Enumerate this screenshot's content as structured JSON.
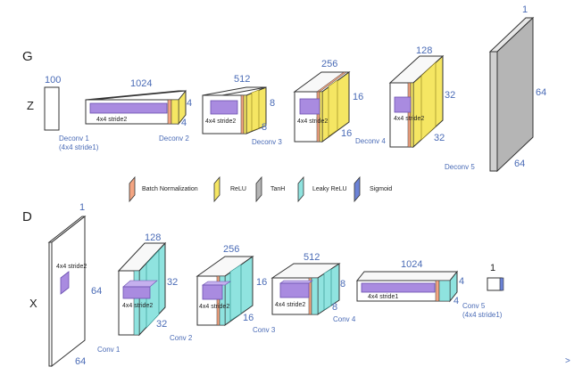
{
  "generator": {
    "section_label": "G",
    "input_label": "Z",
    "input_dim": "100",
    "deconv1": {
      "label": "Deconv 1",
      "detail": "(4x4 stride1)"
    },
    "block1": {
      "depth": "1024",
      "size": "4",
      "size2": "4",
      "kernel": "4x4 stride2"
    },
    "deconv2": "Deconv 2",
    "block2": {
      "depth": "512",
      "size": "8",
      "size2": "8",
      "kernel": "4x4 stride2"
    },
    "deconv3": "Deconv 3",
    "block3": {
      "depth": "256",
      "size": "16",
      "size2": "16",
      "kernel": "4x4 stride2"
    },
    "deconv4": "Deconv 4",
    "block4": {
      "depth": "128",
      "size": "32",
      "size2": "32",
      "kernel": "4x4 stride2"
    },
    "deconv5": "Deconv 5",
    "output": {
      "depth": "1",
      "size": "64",
      "size2": "64"
    }
  },
  "legend": {
    "batch_norm": "Batch Normalization",
    "relu": "ReLU",
    "tanh": "TanH",
    "leaky_relu": "Leaky ReLU",
    "sigmoid": "Sigmoid"
  },
  "discriminator": {
    "section_label": "D",
    "input_label": "X",
    "input": {
      "depth": "1",
      "size": "64",
      "size2": "64",
      "kernel": "4x4 stride2"
    },
    "conv1": "Conv 1",
    "block1": {
      "depth": "128",
      "size": "32",
      "size2": "32",
      "kernel": "4x4 stride2"
    },
    "conv2": "Conv 2",
    "block2": {
      "depth": "256",
      "size": "16",
      "size2": "16",
      "kernel": "4x4 stride2"
    },
    "conv3": "Conv 3",
    "block3": {
      "depth": "512",
      "size": "8",
      "size2": "8",
      "kernel": "4x4 stride2"
    },
    "conv4": "Conv 4",
    "block4": {
      "depth": "1024",
      "size": "4",
      "size2": "4",
      "kernel": "4x4 stride1"
    },
    "conv5": {
      "label": "Conv 5",
      "detail": "(4x4 stride1)"
    },
    "output_dim": "1"
  },
  "colors": {
    "batch_norm": "#f4a582",
    "relu": "#f5e663",
    "tanh": "#b5b5b5",
    "leaky_relu": "#8fe3df",
    "sigmoid": "#6b82d6",
    "kernel": "#a98be0",
    "text_dark": "#222222",
    "text_blue": "#4a6bb6"
  }
}
